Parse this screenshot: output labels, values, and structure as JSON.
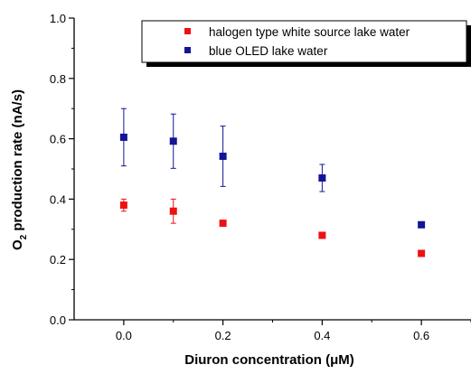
{
  "chart_data": {
    "type": "scatter",
    "xlabel": "Diuron concentration  (μM)",
    "ylabel_main": "O",
    "ylabel_sub": "2",
    "ylabel_rest": " production rate (nA/s)",
    "xlim": [
      -0.1,
      0.7
    ],
    "ylim": [
      0.0,
      1.0
    ],
    "xticks": [
      0.0,
      0.2,
      0.4,
      0.6
    ],
    "xtick_labels": [
      "0.0",
      "0.2",
      "0.4",
      "0.6"
    ],
    "yticks": [
      0.0,
      0.2,
      0.4,
      0.6,
      0.8,
      1.0
    ],
    "ytick_labels": [
      "0.0",
      "0.2",
      "0.4",
      "0.6",
      "0.8",
      "1.0"
    ],
    "grid": false,
    "legend_position": "top-right",
    "series": [
      {
        "name": "halogen type white source lake water",
        "color": "#ee1111",
        "marker": "square",
        "points": [
          {
            "x": 0.0,
            "y": 0.38,
            "err": 0.02
          },
          {
            "x": 0.1,
            "y": 0.36,
            "err": 0.04
          },
          {
            "x": 0.2,
            "y": 0.32,
            "err": 0.0
          },
          {
            "x": 0.4,
            "y": 0.28,
            "err": 0.0
          },
          {
            "x": 0.6,
            "y": 0.22,
            "err": 0.01
          }
        ]
      },
      {
        "name": "blue OLED lake water",
        "color": "#141496",
        "marker": "square",
        "points": [
          {
            "x": 0.0,
            "y": 0.605,
            "err": 0.095
          },
          {
            "x": 0.1,
            "y": 0.592,
            "err": 0.09
          },
          {
            "x": 0.2,
            "y": 0.542,
            "err": 0.1
          },
          {
            "x": 0.4,
            "y": 0.47,
            "err": 0.045
          },
          {
            "x": 0.6,
            "y": 0.315,
            "err": 0.0
          }
        ]
      }
    ]
  }
}
